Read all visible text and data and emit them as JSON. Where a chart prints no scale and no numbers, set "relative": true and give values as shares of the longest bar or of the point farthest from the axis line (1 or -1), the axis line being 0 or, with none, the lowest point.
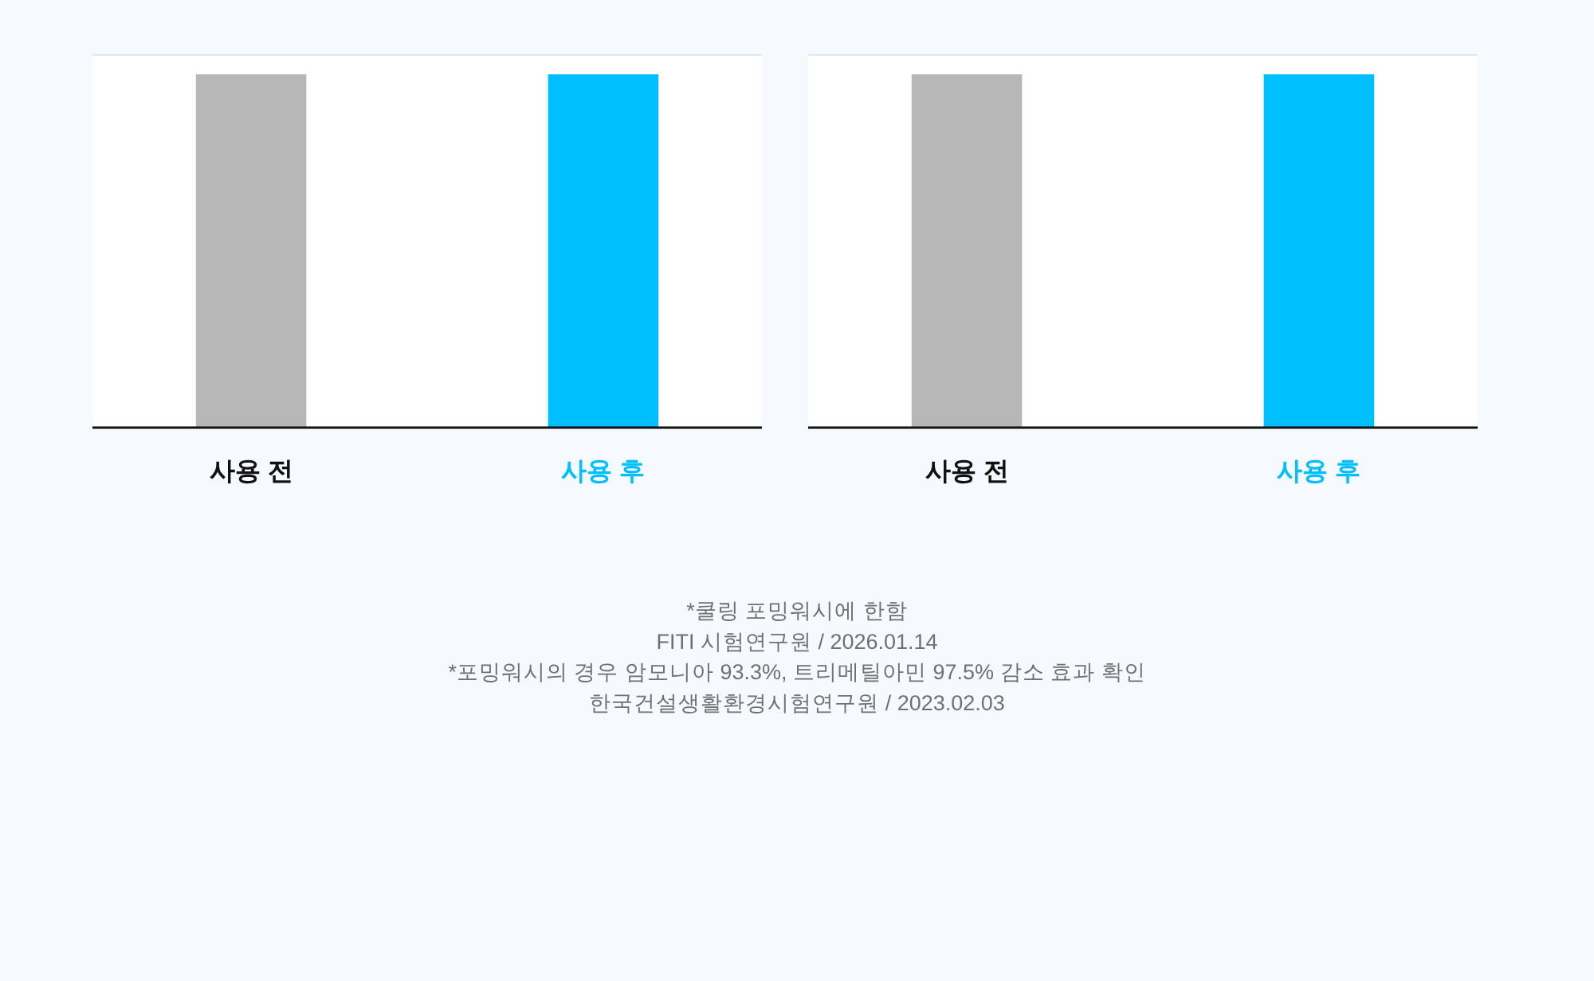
{
  "chart_data": [
    {
      "type": "bar",
      "categories": [
        "사용 전",
        "사용 후"
      ],
      "values": [
        1,
        1
      ],
      "colors": [
        "#b7b7b7",
        "#00bfff"
      ],
      "relative": true,
      "annotations": [
        "*쿨링 포밍워시에 한함",
        "FITI 시험연구원 / 2026.01.14"
      ]
    },
    {
      "type": "bar",
      "categories": [
        "사용 전",
        "사용 후"
      ],
      "values": [
        1,
        1
      ],
      "colors": [
        "#b7b7b7",
        "#00bfff"
      ],
      "relative": true,
      "annotations": [
        "*포밍워시의 경우 암모니아 93.3%, 트리메틸아민 97.5% 감소 효과 확인",
        "한국건설생활환경시험연구원 / 2023.02.03"
      ]
    }
  ]
}
